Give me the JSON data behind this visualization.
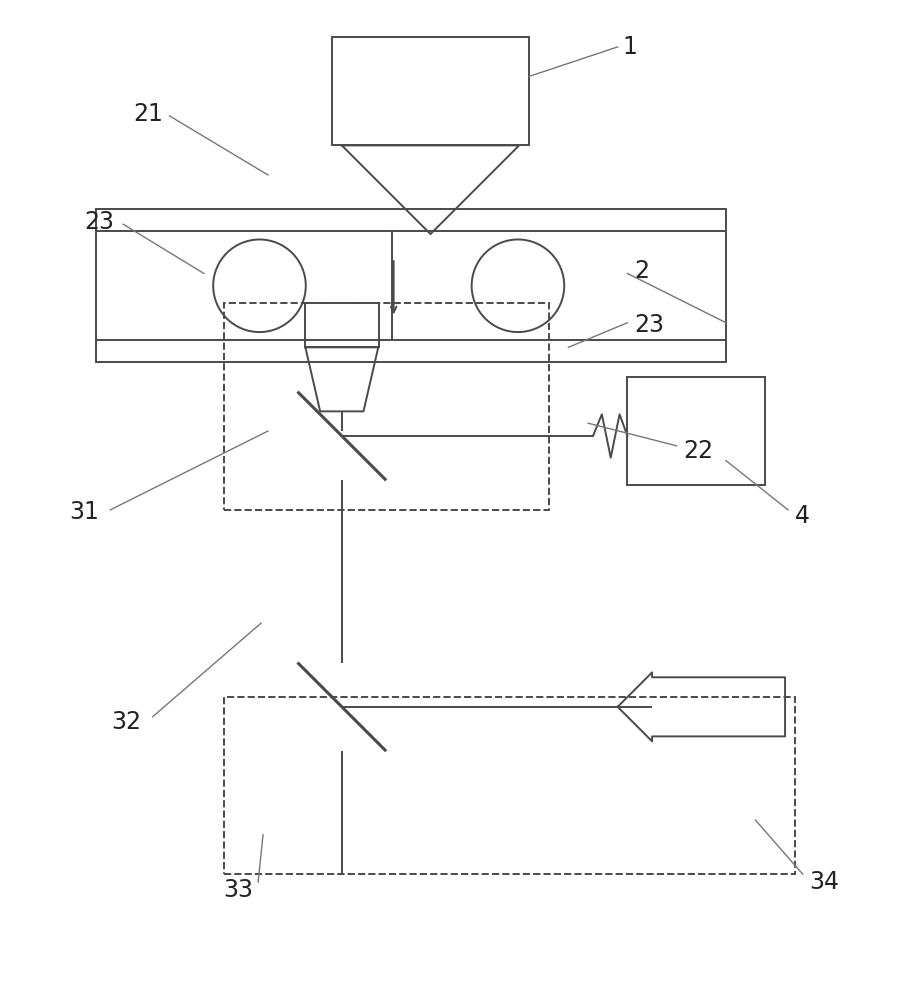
{
  "bg_color": "#ffffff",
  "line_color": "#4a4a4a",
  "label_color": "#222222",
  "ann_color": "#777777",
  "fig_width": 9.23,
  "fig_height": 10.0,
  "lw": 1.4,
  "lw_thick": 2.2
}
